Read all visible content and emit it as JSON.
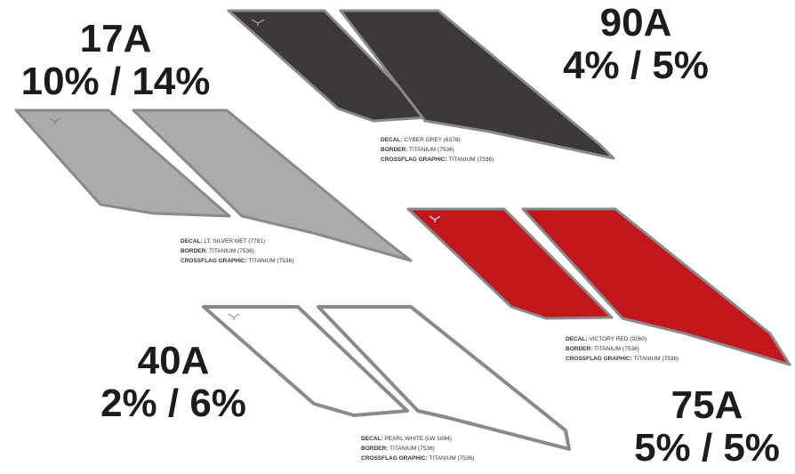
{
  "variants": [
    {
      "code": "17A",
      "percentages": "10% / 14%",
      "fill_color": "#ababab",
      "stroke_color": "#8a8a8a",
      "spec": {
        "decal_key": "DECAL:",
        "decal_val": "LT. SILVER MET (7781)",
        "border_key": "BORDER:",
        "border_val": "TITANIUM (7536)",
        "crossflag_key": "CROSSFLAG GRAPHIC:",
        "crossflag_val": "TITANIUM (7536)"
      }
    },
    {
      "code": "90A",
      "percentages": "4% / 5%",
      "fill_color": "#3b3837",
      "stroke_color": "#8a8a8a",
      "spec": {
        "decal_key": "DECAL:",
        "decal_val": "CYBER GREY (6378)",
        "border_key": "BORDER:",
        "border_val": "TITANIUM (7536)",
        "crossflag_key": "CROSSFLAG GRAPHIC:",
        "crossflag_val": "TITANIUM (7536)"
      }
    },
    {
      "code": "40A",
      "percentages": "2% / 6%",
      "fill_color": "#ffffff",
      "stroke_color": "#8a8a8a",
      "spec": {
        "decal_key": "DECAL:",
        "decal_val": "PEARL WHITE (LW 1094)",
        "border_key": "BORDER:",
        "border_val": "TITANIUM (7536)",
        "crossflag_key": "CROSSFLAG GRAPHIC:",
        "crossflag_val": "TITANIUM (7536)"
      }
    },
    {
      "code": "75A",
      "percentages": "5% / 5%",
      "fill_color": "#c1161c",
      "stroke_color": "#8a8a8a",
      "spec": {
        "decal_key": "DECAL:",
        "decal_val": "VICTORY RED (9260)",
        "border_key": "BORDER:",
        "border_val": "TITANIUM (7536)",
        "crossflag_key": "CROSSFLAG GRAPHIC:",
        "crossflag_val": "TITANIUM (7536)"
      }
    }
  ]
}
